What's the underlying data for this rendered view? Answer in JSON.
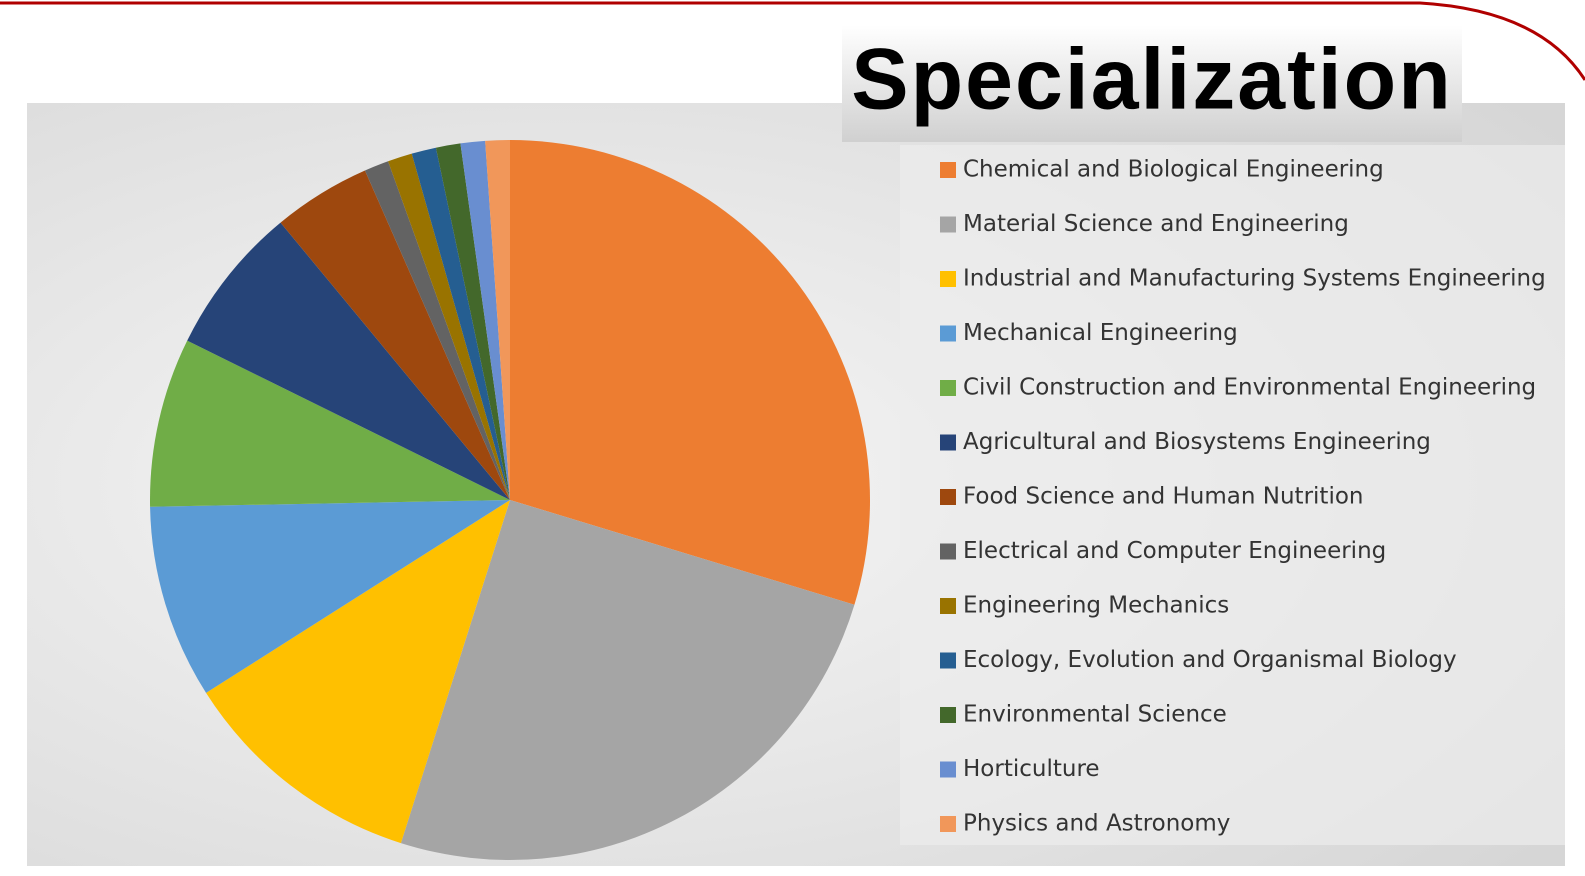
{
  "chart_data": {
    "type": "pie",
    "title": "Specialization",
    "categories": [
      "Chemical and Biological Engineering",
      "Material Science and Engineering",
      "Industrial and Manufacturing Systems Engineering",
      "Mechanical Engineering",
      "Civil Construction and Environmental Engineering",
      "Agricultural and Biosystems Engineering",
      "Food Science and Human Nutrition",
      "Electrical and Computer Engineering",
      "Engineering Mechanics",
      "Ecology, Evolution and Organismal Biology",
      "Environmental Science",
      "Horticulture",
      "Physics and Astronomy"
    ],
    "values": [
      29.7,
      25.2,
      11.1,
      8.7,
      7.6,
      6.7,
      4.4,
      1.1,
      1.1,
      1.1,
      1.1,
      1.1,
      1.1
    ],
    "colors": [
      "#ED7D31",
      "#A5A5A5",
      "#FFC000",
      "#5B9BD5",
      "#70AD47",
      "#264478",
      "#9E480E",
      "#636363",
      "#997300",
      "#255E91",
      "#43682B",
      "#698ED0",
      "#F1975A"
    ],
    "legend": "right"
  }
}
